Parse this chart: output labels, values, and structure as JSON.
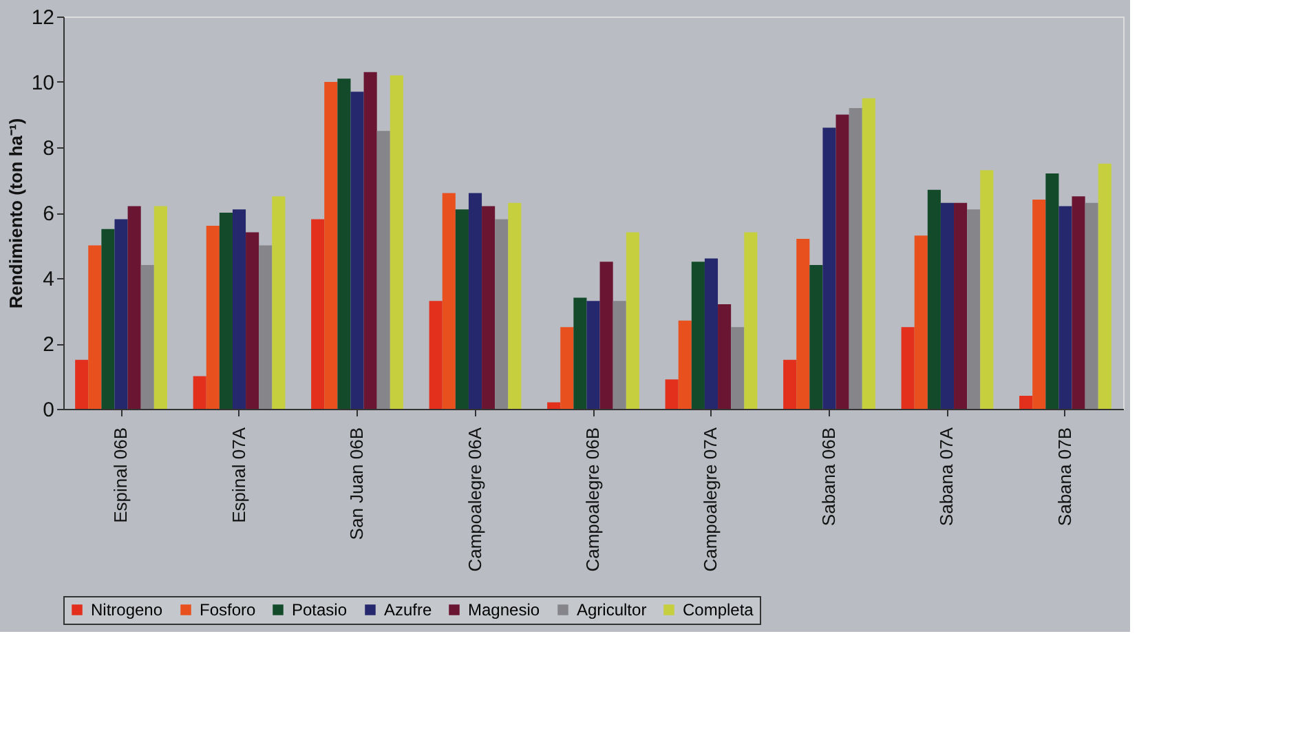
{
  "chart_data": {
    "type": "bar",
    "ylabel": "Rendimiento (ton ha⁻¹)",
    "categories": [
      "Espinal 06B",
      "Espinal 07A",
      "San Juan 06B",
      "Campoalegre 06A",
      "Campoalegre 06B",
      "Campoalegre 07A",
      "Sabana 06B",
      "Sabana 07A",
      "Sabana 07B"
    ],
    "series": [
      {
        "name": "Nitrogeno",
        "color": "#e3301c",
        "values": [
          1.5,
          1.0,
          5.8,
          3.3,
          0.2,
          0.9,
          1.5,
          2.5,
          0.4
        ]
      },
      {
        "name": "Fosforo",
        "color": "#e8501e",
        "values": [
          5.0,
          5.6,
          10.0,
          6.6,
          2.5,
          2.7,
          5.2,
          5.3,
          6.4
        ]
      },
      {
        "name": "Potasio",
        "color": "#124a2a",
        "values": [
          5.5,
          6.0,
          10.1,
          6.1,
          3.4,
          4.5,
          4.4,
          6.7,
          7.2
        ]
      },
      {
        "name": "Azufre",
        "color": "#26286e",
        "values": [
          5.8,
          6.1,
          9.7,
          6.6,
          3.3,
          4.6,
          8.6,
          6.3,
          6.2
        ]
      },
      {
        "name": "Magnesio",
        "color": "#6a1532",
        "values": [
          6.2,
          5.4,
          10.3,
          6.2,
          4.5,
          3.2,
          9.0,
          6.3,
          6.5
        ]
      },
      {
        "name": "Agricultor",
        "color": "#85858a",
        "values": [
          4.4,
          5.0,
          8.5,
          5.8,
          3.3,
          2.5,
          9.2,
          6.1,
          6.3
        ]
      },
      {
        "name": "Completa",
        "color": "#c6cf3e",
        "values": [
          6.2,
          6.5,
          10.2,
          6.3,
          5.4,
          5.4,
          9.5,
          7.3,
          7.5
        ]
      }
    ],
    "ylim": [
      0,
      12
    ],
    "yticks": [
      0,
      2,
      4,
      6,
      8,
      10,
      12
    ],
    "grid": false,
    "legend": "bottom"
  }
}
